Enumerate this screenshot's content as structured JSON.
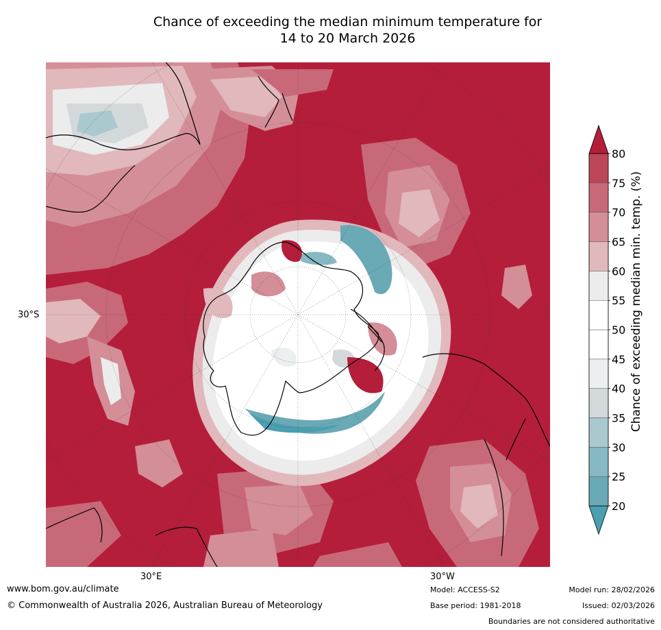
{
  "title": {
    "line1": "Chance of exceeding the median minimum temperature for",
    "line2": "14 to 20 March 2026"
  },
  "map": {
    "projection": "south-polar-stereographic",
    "axis_labels": {
      "left": "30°S",
      "bottom_left": "30°E",
      "bottom_right": "30°W"
    },
    "background_class_color": "#b41e3a",
    "landmasses": [
      "Antarctica",
      "Australia",
      "New Zealand",
      "South America",
      "Southern Africa"
    ]
  },
  "colorbar": {
    "title": "Chance of exceeding median min. temp. (%)",
    "ticks": [
      "20",
      "25",
      "30",
      "35",
      "40",
      "45",
      "50",
      "55",
      "60",
      "65",
      "70",
      "75",
      "80"
    ],
    "colors": [
      "#6aa9b6",
      "#86b9c4",
      "#a9c9cf",
      "#d3d8da",
      "#ebeff0",
      "#ffffff",
      "#ffffff",
      "#ececec",
      "#e1b8bc",
      "#d48e97",
      "#c8697a",
      "#bb4758"
    ],
    "under_color": "#4a9fb0",
    "over_color": "#b41e3a"
  },
  "footer": {
    "url": "www.bom.gov.au/climate",
    "copyright": "© Commonwealth of Australia 2026, Australian Bureau of Meteorology",
    "model": "Model: ACCESS-S2",
    "base_period": "Base period: 1981-2018",
    "model_run": "Model run: 28/02/2026",
    "issued": "Issued: 02/03/2026",
    "disclaimer": "Boundaries are not considered authoritative"
  }
}
